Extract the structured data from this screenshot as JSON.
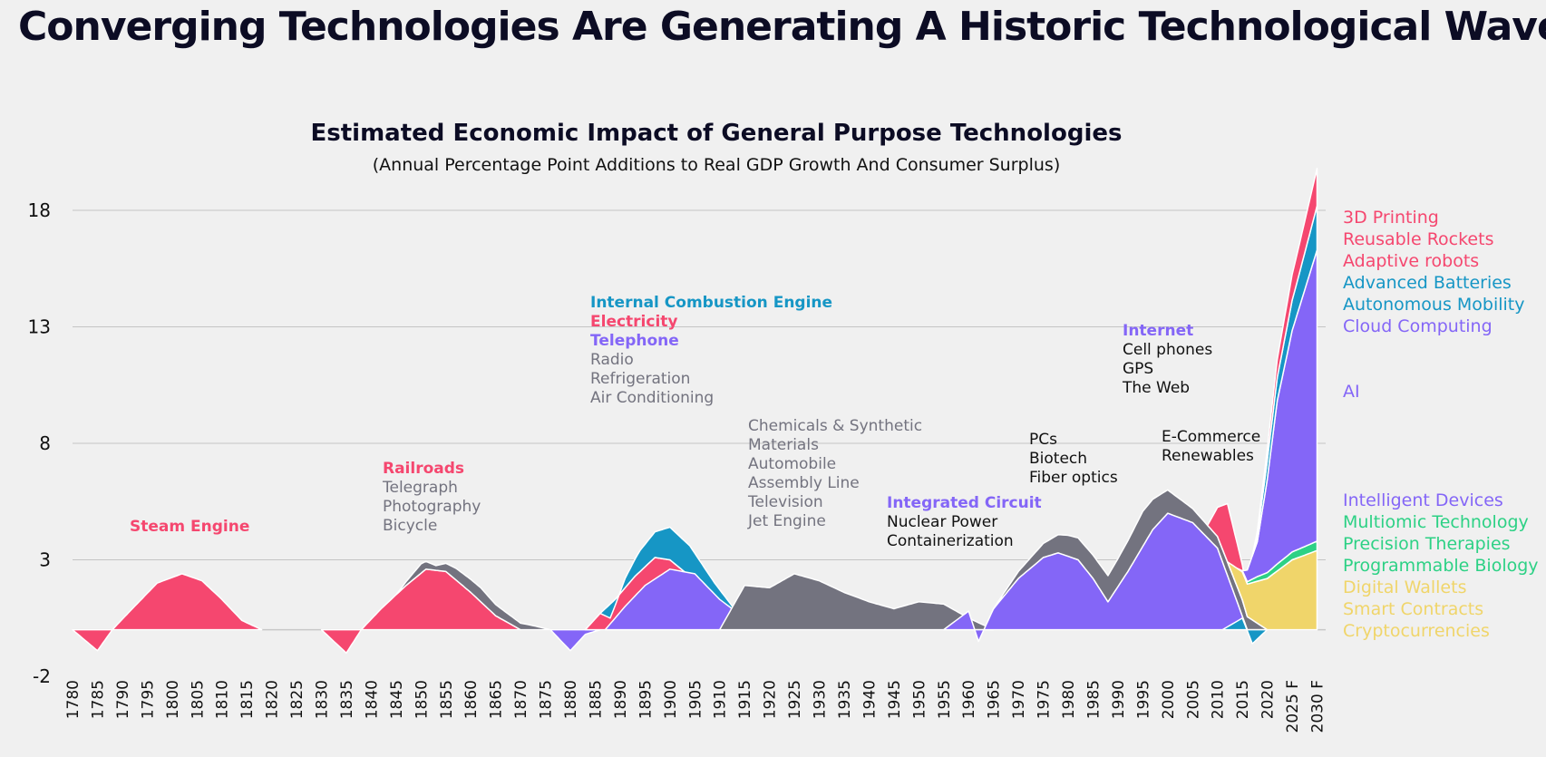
{
  "title": "Converging Technologies Are Generating A Historic Technological Wave",
  "chart_data": {
    "type": "area",
    "title": "Estimated Economic Impact of General Purpose Technologies",
    "subtitle": "(Annual Percentage Point Additions to Real GDP Growth And Consumer Surplus)",
    "ylim": [
      -2,
      18
    ],
    "yticks": [
      "18",
      "13",
      "8",
      "3",
      "-2"
    ],
    "ytick_values": [
      18,
      13,
      8,
      3,
      -2
    ],
    "grid": true,
    "x_categories": [
      "1780",
      "1785",
      "1790",
      "1795",
      "1800",
      "1805",
      "1810",
      "1815",
      "1820",
      "1825",
      "1830",
      "1835",
      "1840",
      "1845",
      "1850",
      "1855",
      "1860",
      "1865",
      "1870",
      "1875",
      "1880",
      "1885",
      "1890",
      "1895",
      "1900",
      "1905",
      "1910",
      "1915",
      "1920",
      "1925",
      "1930",
      "1935",
      "1940",
      "1945",
      "1950",
      "1955",
      "1960",
      "1965",
      "1970",
      "1975",
      "1980",
      "1985",
      "1990",
      "1995",
      "2000",
      "2005",
      "2010",
      "2015",
      "2020",
      "2025 F",
      "2030 F"
    ],
    "colors": {
      "pink": "#f5476f",
      "blue": "#1696c5",
      "purple": "#8466f7",
      "gray": "#73737f",
      "yellow": "#f0d56a",
      "green": "#2dd185",
      "dark": "#111111",
      "lightgray": "#73737f"
    },
    "series": [
      {
        "x": [
          1780,
          1785,
          1788,
          1792,
          1797,
          1802,
          1806,
          1810,
          1814,
          1818
        ],
        "y": [
          0,
          -0.9,
          0,
          0.9,
          2,
          2.4,
          2.1,
          1.3,
          0.4,
          0
        ]
      },
      {
        "x": [
          1830,
          1835,
          1838,
          1842,
          1847,
          1851,
          1855,
          1860,
          1865,
          1870
        ],
        "y": [
          0,
          -1,
          0,
          0.9,
          1.9,
          2.6,
          2.5,
          1.6,
          0.6,
          0
        ]
      },
      {
        "x": [
          1845,
          1850,
          1853,
          1857,
          1862,
          1867,
          1872,
          1876
        ],
        "y": [
          0,
          0.4,
          0.2,
          0.5,
          0.6,
          0.4,
          0.2,
          0
        ]
      },
      {
        "x": [
          1876,
          1880,
          1883,
          1886
        ],
        "y": [
          0,
          -0.9,
          -0.2,
          0
        ]
      },
      {
        "x": [
          1883,
          1886,
          1889,
          1893,
          1897,
          1900,
          1904,
          1909,
          1914,
          1917
        ],
        "y": [
          0,
          0.7,
          1.3,
          2.3,
          3.1,
          3,
          2.3,
          1.2,
          0.3,
          0
        ]
      },
      {
        "x": [
          1886,
          1888,
          1891,
          1894,
          1897,
          1900,
          1904,
          1909,
          1914,
          1917
        ],
        "y": [
          0,
          -0.6,
          0.4,
          0.9,
          1.1,
          1.4,
          1.3,
          0.8,
          0.3,
          0
        ]
      },
      {
        "x": [
          1887,
          1891,
          1895,
          1900,
          1905,
          1910,
          1915,
          1918
        ],
        "y": [
          0,
          1,
          1.9,
          2.6,
          2.4,
          1.3,
          0.5,
          0
        ]
      },
      {
        "x": [
          1910,
          1915,
          1920,
          1925,
          1930,
          1935,
          1940,
          1945,
          1950,
          1955,
          1960,
          1965
        ],
        "y": [
          0,
          1.9,
          1.8,
          2.4,
          2.1,
          1.6,
          1.2,
          0.9,
          1.2,
          1.1,
          0.5,
          0
        ]
      },
      {
        "x": [
          1955,
          1960,
          1962,
          1965,
          1970,
          1975,
          1978,
          1982,
          1985,
          1988,
          1992,
          1997,
          2000,
          2005,
          2010,
          2016
        ],
        "y": [
          0,
          0.8,
          -0.5,
          0.9,
          2.2,
          3.1,
          3.3,
          3,
          2.2,
          1.2,
          2.5,
          4.3,
          5,
          4.6,
          3.5,
          0
        ]
      },
      {
        "x": [
          1965,
          1970,
          1975,
          1980,
          1985,
          1990,
          1995,
          2000,
          2005,
          2010,
          2015,
          2020
        ],
        "y": [
          0,
          0.3,
          0.6,
          0.9,
          1,
          1.2,
          1.5,
          1,
          0.6,
          0.5,
          0.7,
          0
        ]
      },
      {
        "x": [
          2008,
          2012,
          2015,
          2017,
          2020
        ],
        "y": [
          0,
          2.5,
          1.5,
          0.5,
          0
        ]
      },
      {
        "x": [
          2011,
          2015,
          2017,
          2020
        ],
        "y": [
          0,
          0.5,
          -0.6,
          0
        ]
      },
      {
        "x": [
          2012,
          2015,
          2020,
          2025,
          2030
        ],
        "y": [
          0,
          1.2,
          2.2,
          3,
          3.4
        ]
      },
      {
        "x": [
          2014,
          2018,
          2022,
          2026,
          2030
        ],
        "y": [
          0,
          0.2,
          0.3,
          0.35,
          0.4
        ]
      },
      {
        "x": [
          2015,
          2018,
          2020,
          2022,
          2025,
          2030
        ],
        "y": [
          0,
          1.5,
          4,
          7,
          9.5,
          12.5
        ]
      },
      {
        "x": [
          2017,
          2020,
          2023,
          2026,
          2030
        ],
        "y": [
          0,
          0.8,
          1.1,
          1.4,
          1.9
        ]
      },
      {
        "x": [
          2017,
          2020,
          2023,
          2026,
          2030
        ],
        "y": [
          0,
          0.5,
          0.9,
          1.2,
          1.6
        ]
      }
    ],
    "annotations": [
      {
        "lines": [
          {
            "text": "Steam Engine",
            "color": "pink",
            "bold": true
          }
        ]
      },
      {
        "lines": [
          {
            "text": "Railroads",
            "color": "pink",
            "bold": true
          },
          {
            "text": "Telegraph",
            "color": "lightgray"
          },
          {
            "text": "Photography",
            "color": "lightgray"
          },
          {
            "text": "Bicycle",
            "color": "lightgray"
          }
        ]
      },
      {
        "lines": [
          {
            "text": "Internal Combustion Engine",
            "color": "blue",
            "bold": true
          },
          {
            "text": "Electricity",
            "color": "pink",
            "bold": true
          },
          {
            "text": "Telephone",
            "color": "purple",
            "bold": true
          },
          {
            "text": "Radio",
            "color": "lightgray"
          },
          {
            "text": "Refrigeration",
            "color": "lightgray"
          },
          {
            "text": "Air Conditioning",
            "color": "lightgray"
          }
        ]
      },
      {
        "lines": [
          {
            "text": "Chemicals & Synthetic",
            "color": "lightgray"
          },
          {
            "text": "Materials",
            "color": "lightgray"
          },
          {
            "text": "Automobile",
            "color": "lightgray"
          },
          {
            "text": "Assembly Line",
            "color": "lightgray"
          },
          {
            "text": "Television",
            "color": "lightgray"
          },
          {
            "text": "Jet Engine",
            "color": "lightgray"
          }
        ]
      },
      {
        "lines": [
          {
            "text": "Integrated Circuit",
            "color": "purple",
            "bold": true
          },
          {
            "text": "Nuclear Power",
            "color": "dark"
          },
          {
            "text": "Containerization",
            "color": "dark"
          }
        ]
      },
      {
        "lines": [
          {
            "text": "PCs",
            "color": "dark"
          },
          {
            "text": "Biotech",
            "color": "dark"
          },
          {
            "text": "Fiber optics",
            "color": "dark"
          }
        ]
      },
      {
        "lines": [
          {
            "text": "Internet",
            "color": "purple",
            "bold": true
          },
          {
            "text": "Cell phones",
            "color": "dark"
          },
          {
            "text": "GPS",
            "color": "dark"
          },
          {
            "text": "The Web",
            "color": "dark"
          }
        ]
      },
      {
        "lines": [
          {
            "text": "E-Commerce",
            "color": "dark"
          },
          {
            "text": "Renewables",
            "color": "dark"
          }
        ]
      }
    ],
    "legend": [
      {
        "text": "3D Printing",
        "color": "pink"
      },
      {
        "text": "Reusable Rockets",
        "color": "pink"
      },
      {
        "text": "Adaptive robots",
        "color": "pink"
      },
      {
        "text": "Advanced Batteries",
        "color": "blue"
      },
      {
        "text": "Autonomous Mobility",
        "color": "blue"
      },
      {
        "text": "Cloud Computing",
        "color": "purple"
      },
      {
        "text": "AI",
        "color": "purple"
      },
      {
        "text": "Intelligent Devices",
        "color": "purple"
      },
      {
        "text": "Multiomic Technology",
        "color": "green"
      },
      {
        "text": "Precision Therapies",
        "color": "green"
      },
      {
        "text": "Programmable Biology",
        "color": "green"
      },
      {
        "text": "Digital Wallets",
        "color": "yellow"
      },
      {
        "text": "Smart Contracts",
        "color": "yellow"
      },
      {
        "text": "Cryptocurrencies",
        "color": "yellow"
      }
    ]
  }
}
